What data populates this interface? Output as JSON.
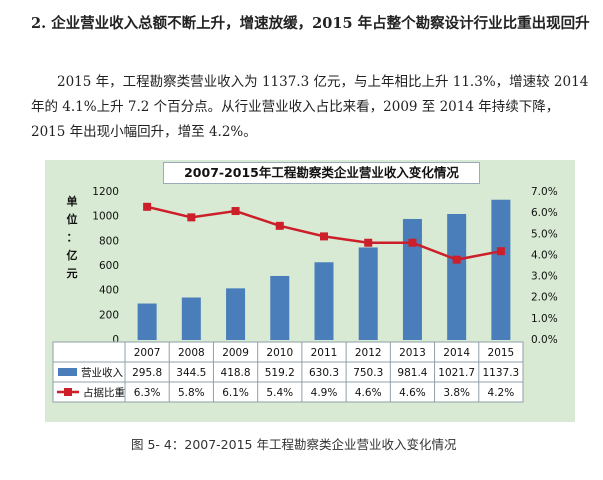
{
  "document": {
    "heading": "2.  企业营业收入总额不断上升，增速放缓，2015 年占整个勘察设计行业比重出现回升",
    "paragraph": "2015 年，工程勘察类营业收入为 1137.3 亿元，与上年相比上升 11.3%，增速较 2014 年的 4.1%上升 7.2 个百分点。从行业营业收入占比来看，2009 至 2014 年持续下降，2015 年出现小幅回升，增至 4.2%。",
    "caption": "图 5- 4：2007-2015 年工程勘察类企业营业收入变化情况"
  },
  "chart_data": {
    "type": "bar+line",
    "title": "2007-2015年工程勘察类企业营业收入变化情况",
    "y_label_chars": [
      "单",
      "位",
      "：",
      "亿",
      "元"
    ],
    "categories": [
      "2007",
      "2008",
      "2009",
      "2010",
      "2011",
      "2012",
      "2013",
      "2014",
      "2015"
    ],
    "series": [
      {
        "name": "营业收入",
        "kind": "bar",
        "axis": "left",
        "color": "#4a7ebb",
        "values": [
          295.8,
          344.5,
          418.8,
          519.2,
          630.3,
          750.3,
          981.4,
          1021.7,
          1137.3
        ],
        "labels": [
          "295.8",
          "344.5",
          "418.8",
          "519.2",
          "630.3",
          "750.3",
          "981.4",
          "1021.7",
          "1137.3"
        ]
      },
      {
        "name": "占据比重",
        "kind": "line",
        "axis": "right",
        "color": "#cc1f2a",
        "values": [
          6.3,
          5.8,
          6.1,
          5.4,
          4.9,
          4.6,
          4.6,
          3.8,
          4.2
        ],
        "labels": [
          "6.3%",
          "5.8%",
          "6.1%",
          "5.4%",
          "4.9%",
          "4.6%",
          "4.6%",
          "3.8%",
          "4.2%"
        ]
      }
    ],
    "left_axis": {
      "min": 0,
      "max": 1200,
      "ticks": [
        0,
        200,
        400,
        600,
        800,
        1000,
        1200
      ]
    },
    "right_axis": {
      "min": 0,
      "max": 7,
      "ticks": [
        "0.0%",
        "1.0%",
        "2.0%",
        "3.0%",
        "4.0%",
        "5.0%",
        "6.0%",
        "7.0%"
      ]
    },
    "data_table": true
  }
}
